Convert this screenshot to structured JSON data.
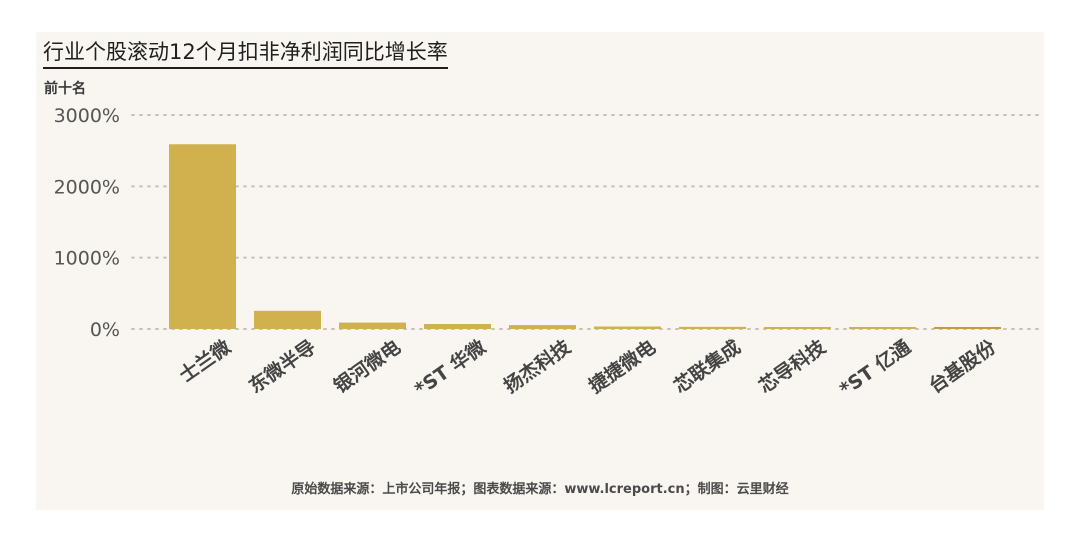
{
  "chart_data": {
    "type": "bar",
    "title": "行业个股滚动12个月扣非净利润同比增长率",
    "subtitle": "前十名",
    "categories": [
      "士兰微",
      "东微半导",
      "银河微电",
      "*ST 华微",
      "扬杰科技",
      "捷捷微电",
      "芯联集成",
      "芯导科技",
      "*ST 亿通",
      "台基股份"
    ],
    "values": [
      2590,
      255,
      90,
      70,
      55,
      35,
      30,
      20,
      15,
      5
    ],
    "y_ticks": [
      0,
      1000,
      2000,
      3000
    ],
    "y_tick_labels": [
      "0%",
      "1000%",
      "2000%",
      "3000%"
    ],
    "ylim": [
      0,
      3000
    ],
    "grid": true,
    "legend": "none",
    "colors": {
      "bar": "#d1b04e",
      "last_bar": "#c89a3a",
      "grid": "#c9c2b6",
      "panel": "#f9f6f2"
    }
  },
  "footer": "原始数据来源：上市公司年报；图表数据来源：www.lcreport.cn；制图：云里财经"
}
